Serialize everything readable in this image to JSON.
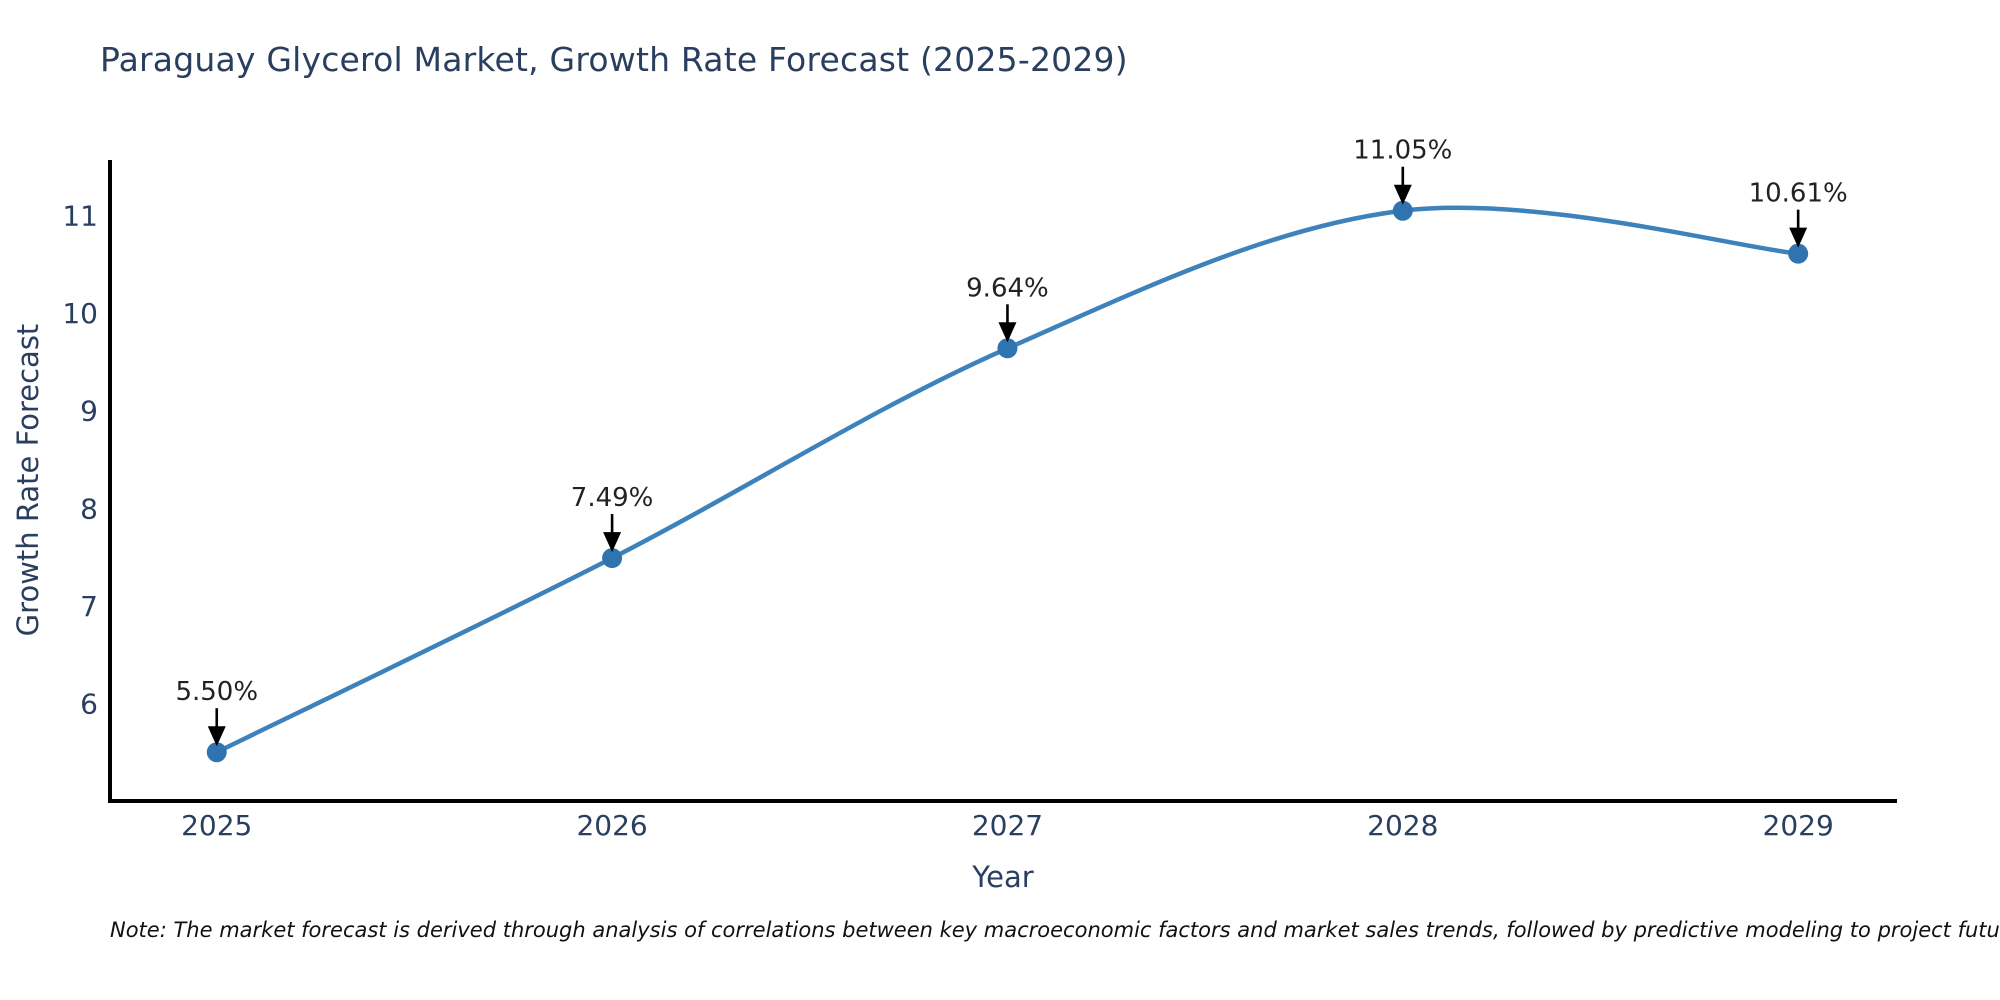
{
  "page": {
    "title": "Paraguay Glycerol Market, Growth Rate Forecast (2025-2029)",
    "note": "Note: The market forecast is derived through analysis of correlations between key macroeconomic factors and market sales trends, followed by predictive modeling to project future sales"
  },
  "chart_data": {
    "type": "line",
    "title": "Paraguay Glycerol Market, Growth Rate Forecast (2025-2029)",
    "xlabel": "Year",
    "ylabel": "Growth Rate Forecast",
    "categories": [
      2025,
      2026,
      2027,
      2028,
      2029
    ],
    "series": [
      {
        "name": "Growth Rate Forecast",
        "values": [
          5.5,
          7.49,
          9.64,
          11.05,
          10.61
        ]
      }
    ],
    "point_labels": [
      "5.50%",
      "7.49%",
      "9.64%",
      "11.05%",
      "10.61%"
    ],
    "yticks": [
      6,
      7,
      8,
      9,
      10,
      11
    ],
    "xlim": [
      2024.73,
      2029.25
    ],
    "ylim": [
      5.0,
      11.57
    ],
    "grid": false,
    "legend": false,
    "smooth": true,
    "marker_shape": "circle"
  },
  "colors": {
    "line": "#3e82bb",
    "marker": "#2f74ae",
    "axis_text": "#2a3f5f",
    "point_label": "#222222",
    "spine": "#000000",
    "arrow": "#000000",
    "note_text": "#111111",
    "background": "#ffffff"
  }
}
